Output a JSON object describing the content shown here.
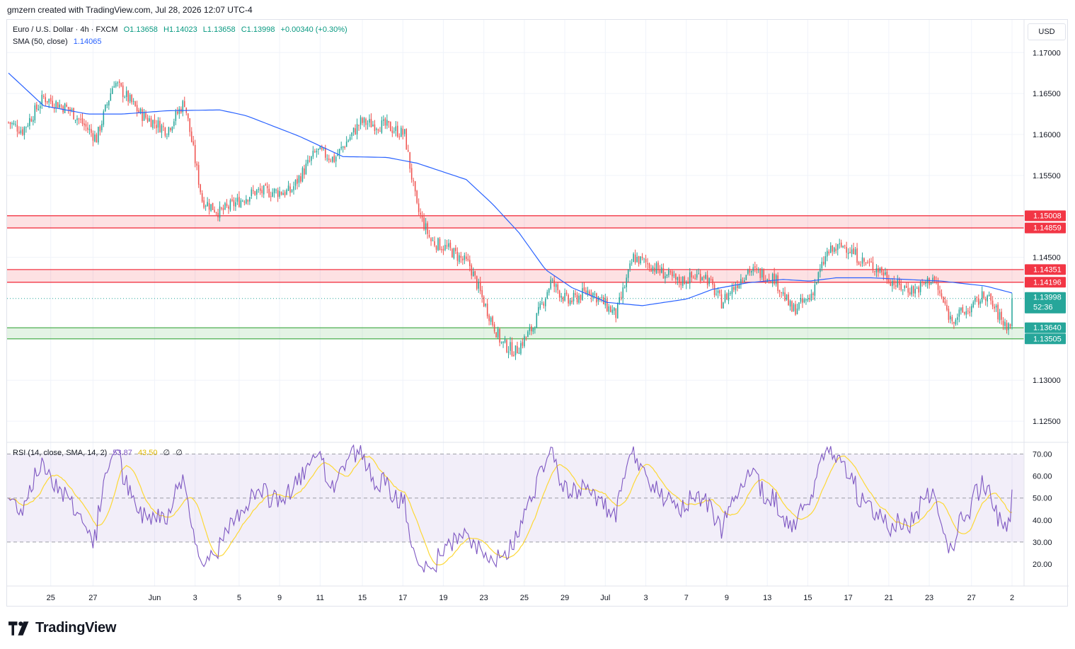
{
  "header": {
    "author": "gmzern created with TradingView.com, Jul 28, 2026 12:07 UTC-4"
  },
  "legend": {
    "symbol": "Euro / U.S. Dollar · 4h · FXCM",
    "open": "O1.13658",
    "high": "H1.14023",
    "low": "L1.13658",
    "close": "C1.13998",
    "change": "+0.00340 (+0.30%)",
    "sma_label": "SMA (50, close)",
    "sma_value": "1.14065",
    "rsi_label": "RSI (14, close, SMA, 14, 2)",
    "rsi_value": "53.87",
    "rsi_sma_value": "43.50",
    "rsi_extra1": "∅",
    "rsi_extra2": "∅"
  },
  "currency_button": "USD",
  "footer": {
    "brand": "TradingView"
  },
  "colors": {
    "up": "#26a69a",
    "down": "#ef5350",
    "sma": "#2962ff",
    "rsi": "#7e57c2",
    "rsi_sma": "#fdd835",
    "resistance_zone": "#f23645",
    "support_zone": "#4caf50",
    "label_red": "#f23645",
    "label_green": "#26a69a"
  },
  "chart_data": [
    {
      "type": "candlestick",
      "title": "Euro / U.S. Dollar · 4h · FXCM",
      "timeframe": "4h",
      "ylim": [
        1.1225,
        1.174
      ],
      "y_ticks": [
        "1.17000",
        "1.16500",
        "1.16000",
        "1.15500",
        "1.14500",
        "1.13000",
        "1.12500"
      ],
      "x_ticks": [
        "25",
        "27",
        "Jun",
        "3",
        "5",
        "9",
        "11",
        "15",
        "17",
        "19",
        "23",
        "25",
        "29",
        "Jul",
        "3",
        "7",
        "9",
        "13",
        "15",
        "17",
        "21",
        "23",
        "27",
        "2"
      ],
      "grid": true,
      "ohlc_anchors": [
        {
          "t": 0,
          "close": 1.1615
        },
        {
          "t": 8,
          "close": 1.1605
        },
        {
          "t": 20,
          "close": 1.1645
        },
        {
          "t": 35,
          "close": 1.163
        },
        {
          "t": 50,
          "close": 1.1595
        },
        {
          "t": 60,
          "close": 1.1665
        },
        {
          "t": 75,
          "close": 1.1625
        },
        {
          "t": 90,
          "close": 1.1605
        },
        {
          "t": 100,
          "close": 1.164
        },
        {
          "t": 110,
          "close": 1.152
        },
        {
          "t": 120,
          "close": 1.1505
        },
        {
          "t": 140,
          "close": 1.153
        },
        {
          "t": 160,
          "close": 1.153
        },
        {
          "t": 175,
          "close": 1.158
        },
        {
          "t": 185,
          "close": 1.157
        },
        {
          "t": 200,
          "close": 1.1615
        },
        {
          "t": 215,
          "close": 1.161
        },
        {
          "t": 225,
          "close": 1.16
        },
        {
          "t": 232,
          "close": 1.151
        },
        {
          "t": 240,
          "close": 1.147
        },
        {
          "t": 250,
          "close": 1.146
        },
        {
          "t": 262,
          "close": 1.144
        },
        {
          "t": 270,
          "close": 1.1395
        },
        {
          "t": 280,
          "close": 1.1345
        },
        {
          "t": 288,
          "close": 1.1335
        },
        {
          "t": 298,
          "close": 1.1365
        },
        {
          "t": 308,
          "close": 1.142
        },
        {
          "t": 318,
          "close": 1.1395
        },
        {
          "t": 330,
          "close": 1.141
        },
        {
          "t": 345,
          "close": 1.138
        },
        {
          "t": 355,
          "close": 1.145
        },
        {
          "t": 365,
          "close": 1.144
        },
        {
          "t": 380,
          "close": 1.142
        },
        {
          "t": 395,
          "close": 1.143
        },
        {
          "t": 405,
          "close": 1.1395
        },
        {
          "t": 420,
          "close": 1.1435
        },
        {
          "t": 435,
          "close": 1.1425
        },
        {
          "t": 445,
          "close": 1.1385
        },
        {
          "t": 455,
          "close": 1.14
        },
        {
          "t": 465,
          "close": 1.1455
        },
        {
          "t": 475,
          "close": 1.1465
        },
        {
          "t": 485,
          "close": 1.1445
        },
        {
          "t": 495,
          "close": 1.1435
        },
        {
          "t": 505,
          "close": 1.1415
        },
        {
          "t": 515,
          "close": 1.141
        },
        {
          "t": 525,
          "close": 1.1425
        },
        {
          "t": 535,
          "close": 1.1375
        },
        {
          "t": 545,
          "close": 1.1385
        },
        {
          "t": 555,
          "close": 1.1405
        },
        {
          "t": 565,
          "close": 1.137
        },
        {
          "t": 569,
          "close": 1.13658
        },
        {
          "t": 570,
          "close": 1.13998
        }
      ],
      "sma": {
        "name": "SMA (50, close)",
        "anchors": [
          {
            "t": 0,
            "v": 1.1675
          },
          {
            "t": 20,
            "v": 1.1635
          },
          {
            "t": 45,
            "v": 1.1625
          },
          {
            "t": 65,
            "v": 1.1625
          },
          {
            "t": 90,
            "v": 1.1629
          },
          {
            "t": 120,
            "v": 1.163
          },
          {
            "t": 135,
            "v": 1.1623
          },
          {
            "t": 165,
            "v": 1.1598
          },
          {
            "t": 190,
            "v": 1.1573
          },
          {
            "t": 215,
            "v": 1.1572
          },
          {
            "t": 232,
            "v": 1.1565
          },
          {
            "t": 260,
            "v": 1.1545
          },
          {
            "t": 275,
            "v": 1.1515
          },
          {
            "t": 290,
            "v": 1.148
          },
          {
            "t": 305,
            "v": 1.1435
          },
          {
            "t": 320,
            "v": 1.1413
          },
          {
            "t": 340,
            "v": 1.1395
          },
          {
            "t": 360,
            "v": 1.1391
          },
          {
            "t": 385,
            "v": 1.1399
          },
          {
            "t": 400,
            "v": 1.1411
          },
          {
            "t": 420,
            "v": 1.1419
          },
          {
            "t": 440,
            "v": 1.1423
          },
          {
            "t": 455,
            "v": 1.1421
          },
          {
            "t": 470,
            "v": 1.1425
          },
          {
            "t": 490,
            "v": 1.1425
          },
          {
            "t": 510,
            "v": 1.1423
          },
          {
            "t": 530,
            "v": 1.1421
          },
          {
            "t": 555,
            "v": 1.1415
          },
          {
            "t": 570,
            "v": 1.14065
          }
        ]
      },
      "zones": [
        {
          "kind": "resistance",
          "top": 1.15008,
          "bottom": 1.14859
        },
        {
          "kind": "resistance",
          "top": 1.14351,
          "bottom": 1.14196
        },
        {
          "kind": "support",
          "top": 1.1364,
          "bottom": 1.13505
        }
      ],
      "price_labels": [
        {
          "text": "1.15008",
          "value": 1.15008,
          "kind": "red"
        },
        {
          "text": "1.14859",
          "value": 1.14859,
          "kind": "red"
        },
        {
          "text": "1.14351",
          "value": 1.14351,
          "kind": "red"
        },
        {
          "text": "1.14196",
          "value": 1.14196,
          "kind": "red"
        },
        {
          "text": "1.13998",
          "value": 1.13998,
          "kind": "current",
          "countdown": "52:36"
        },
        {
          "text": "1.13640",
          "value": 1.1364,
          "kind": "green"
        },
        {
          "text": "1.13505",
          "value": 1.13505,
          "kind": "green"
        }
      ]
    },
    {
      "type": "line",
      "title": "RSI (14, close, SMA, 14, 2)",
      "ylim": [
        10,
        75
      ],
      "y_ticks": [
        "70.00",
        "60.00",
        "50.00",
        "40.00",
        "30.00",
        "20.00"
      ],
      "bands": {
        "upper": 70,
        "middle": 50,
        "lower": 30
      },
      "series": [
        {
          "name": "RSI",
          "last": 53.87
        },
        {
          "name": "RSI-based MA",
          "last": 43.5
        }
      ]
    }
  ]
}
